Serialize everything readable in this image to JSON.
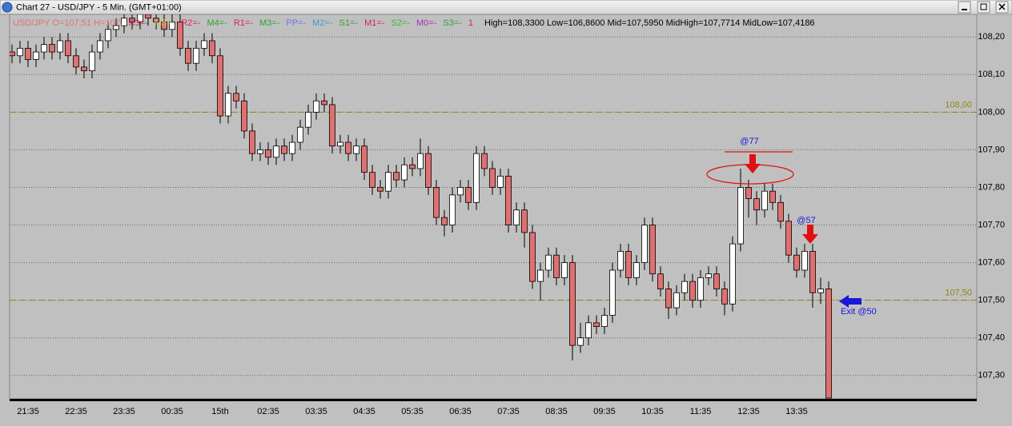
{
  "chart_data": {
    "type": "candlestick",
    "title": "Chart 27 - USD/JPY - 5 Min. (GMT+01:00)",
    "header": "USD/JPY O=107,51 H=107,",
    "legend": [
      {
        "label": "R3=-",
        "color": "#d8205a"
      },
      {
        "label": "M5=-",
        "color": "#c8c850"
      },
      {
        "label": "R2=-",
        "color": "#d8205a"
      },
      {
        "label": "M4=-",
        "color": "#30a030"
      },
      {
        "label": "R1=-",
        "color": "#d8205a"
      },
      {
        "label": "M3=-",
        "color": "#30a030"
      },
      {
        "label": "PP=-",
        "color": "#7070f0"
      },
      {
        "label": "M2=-",
        "color": "#3a9ad0"
      },
      {
        "label": "S1=-",
        "color": "#30a030"
      },
      {
        "label": "M1=-",
        "color": "#d8205a"
      },
      {
        "label": "S2=-",
        "color": "#30c030"
      },
      {
        "label": "M0=-",
        "color": "#a030c0"
      },
      {
        "label": "S3=-",
        "color": "#30a030"
      },
      {
        "label": "1",
        "color": "#d8205a"
      }
    ],
    "stats": "High=108,3300 Low=106,8600 Mid=107,5950 MidHigh=107,7714 MidLow=107,4186",
    "categories": [
      null,
      null,
      "21:35",
      null,
      null,
      null,
      null,
      null,
      "22:35",
      null,
      null,
      null,
      null,
      null,
      "23:35",
      null,
      null,
      null,
      null,
      null,
      "00:35",
      null,
      null,
      null,
      null,
      null,
      "15th",
      null,
      null,
      null,
      null,
      null,
      "02:35",
      null,
      null,
      null,
      null,
      null,
      "03:35",
      null,
      null,
      null,
      null,
      null,
      "04:35",
      null,
      null,
      null,
      null,
      null,
      "05:35",
      null,
      null,
      null,
      null,
      null,
      "06:35",
      null,
      null,
      null,
      null,
      null,
      "07:35",
      null,
      null,
      null,
      null,
      null,
      "08:35",
      null,
      null,
      null,
      null,
      null,
      "09:35",
      null,
      null,
      null,
      null,
      null,
      "10:35",
      null,
      null,
      null,
      null,
      null,
      "11:35",
      null,
      null,
      null,
      null,
      null,
      "12:35",
      null,
      null,
      null,
      null,
      null,
      "13:35",
      null,
      null,
      null,
      null
    ],
    "open": [
      108.16,
      108.15,
      108.17,
      108.14,
      108.16,
      108.18,
      108.16,
      108.19,
      108.15,
      108.12,
      108.11,
      108.16,
      108.19,
      108.22,
      108.23,
      108.25,
      108.24,
      108.26,
      108.25,
      108.24,
      108.22,
      108.24,
      108.17,
      108.13,
      108.17,
      108.19,
      108.15,
      107.99,
      108.05,
      108.03,
      107.95,
      107.89,
      107.9,
      107.88,
      107.91,
      107.89,
      107.92,
      107.96,
      108.0,
      108.03,
      108.02,
      107.91,
      107.92,
      107.89,
      107.91,
      107.84,
      107.8,
      107.79,
      107.84,
      107.82,
      107.86,
      107.85,
      107.89,
      107.8,
      107.72,
      107.7,
      107.78,
      107.8,
      107.76,
      107.89,
      107.85,
      107.8,
      107.83,
      107.7,
      107.74,
      107.68,
      107.55,
      107.58,
      107.62,
      107.56,
      107.6,
      107.38,
      107.4,
      107.44,
      107.43,
      107.46,
      107.58,
      107.63,
      107.56,
      107.6,
      107.7,
      107.57,
      107.53,
      107.48,
      107.52,
      107.55,
      107.5,
      107.56,
      107.57,
      107.53,
      107.49,
      107.65,
      107.8,
      107.77,
      107.74,
      107.79,
      107.76,
      107.71,
      107.62,
      107.58,
      107.63,
      107.52,
      107.53
    ],
    "high": [
      108.18,
      108.19,
      108.19,
      108.18,
      108.2,
      108.2,
      108.21,
      108.21,
      108.17,
      108.14,
      108.18,
      108.21,
      108.24,
      108.25,
      108.27,
      108.27,
      108.28,
      108.28,
      108.27,
      108.26,
      108.26,
      108.26,
      108.19,
      108.19,
      108.21,
      108.21,
      108.17,
      108.07,
      108.07,
      108.05,
      107.97,
      107.92,
      107.92,
      107.93,
      107.93,
      107.94,
      107.98,
      108.02,
      108.05,
      108.05,
      108.04,
      107.94,
      107.94,
      107.93,
      107.93,
      107.86,
      107.82,
      107.86,
      107.86,
      107.88,
      107.88,
      107.93,
      107.91,
      107.82,
      107.74,
      107.8,
      107.82,
      107.82,
      107.91,
      107.91,
      107.87,
      107.85,
      107.85,
      107.76,
      107.76,
      107.7,
      107.6,
      107.64,
      107.64,
      107.62,
      107.62,
      107.44,
      107.46,
      107.46,
      107.48,
      107.6,
      107.65,
      107.65,
      107.62,
      107.72,
      107.72,
      107.59,
      107.55,
      107.54,
      107.57,
      107.57,
      107.58,
      107.59,
      107.59,
      107.55,
      107.67,
      107.85,
      107.82,
      107.79,
      107.81,
      107.81,
      107.78,
      107.73,
      107.64,
      107.65,
      107.65,
      107.56,
      107.55
    ],
    "low": [
      108.13,
      108.13,
      108.12,
      108.12,
      108.14,
      108.14,
      108.14,
      108.13,
      108.1,
      108.09,
      108.09,
      108.14,
      108.17,
      108.2,
      108.21,
      108.22,
      108.22,
      108.23,
      108.22,
      108.2,
      108.2,
      108.15,
      108.11,
      108.11,
      108.15,
      108.13,
      107.97,
      107.97,
      108.01,
      107.93,
      107.87,
      107.87,
      107.86,
      107.86,
      107.87,
      107.87,
      107.9,
      107.94,
      107.98,
      108.0,
      107.89,
      107.89,
      107.87,
      107.87,
      107.82,
      107.78,
      107.77,
      107.77,
      107.8,
      107.8,
      107.83,
      107.83,
      107.78,
      107.7,
      107.67,
      107.68,
      107.76,
      107.74,
      107.74,
      107.83,
      107.78,
      107.78,
      107.68,
      107.68,
      107.64,
      107.53,
      107.5,
      107.56,
      107.54,
      107.54,
      107.34,
      107.36,
      107.38,
      107.41,
      107.41,
      107.44,
      107.56,
      107.54,
      107.54,
      107.58,
      107.55,
      107.51,
      107.45,
      107.46,
      107.5,
      107.48,
      107.48,
      107.54,
      107.51,
      107.46,
      107.47,
      107.63,
      107.72,
      107.7,
      107.72,
      107.74,
      107.69,
      107.6,
      107.56,
      107.56,
      107.48,
      107.49,
      107.24
    ],
    "close": [
      108.15,
      108.17,
      108.14,
      108.16,
      108.18,
      108.16,
      108.19,
      108.15,
      108.12,
      108.11,
      108.16,
      108.19,
      108.22,
      108.23,
      108.25,
      108.24,
      108.26,
      108.25,
      108.24,
      108.22,
      108.24,
      108.17,
      108.13,
      108.17,
      108.19,
      108.15,
      107.99,
      108.05,
      108.03,
      107.95,
      107.89,
      107.9,
      107.88,
      107.91,
      107.89,
      107.92,
      107.96,
      108.0,
      108.03,
      108.02,
      107.91,
      107.92,
      107.89,
      107.91,
      107.84,
      107.8,
      107.79,
      107.84,
      107.82,
      107.86,
      107.85,
      107.89,
      107.8,
      107.72,
      107.7,
      107.78,
      107.8,
      107.76,
      107.89,
      107.85,
      107.8,
      107.83,
      107.7,
      107.74,
      107.68,
      107.55,
      107.58,
      107.62,
      107.56,
      107.6,
      107.38,
      107.4,
      107.44,
      107.43,
      107.46,
      107.58,
      107.63,
      107.56,
      107.6,
      107.7,
      107.57,
      107.53,
      107.48,
      107.52,
      107.55,
      107.5,
      107.56,
      107.57,
      107.53,
      107.49,
      107.65,
      107.8,
      107.77,
      107.74,
      107.79,
      107.76,
      107.71,
      107.62,
      107.58,
      107.63,
      107.52,
      107.53,
      107.24
    ],
    "up_color": "#ffffff",
    "down_color": "#e07070",
    "ylim": [
      107.24,
      108.26
    ],
    "yticks": [
      {
        "value": 107.3,
        "label": "107,30"
      },
      {
        "value": 107.4,
        "label": "107,40"
      },
      {
        "value": 107.5,
        "label": "107,50"
      },
      {
        "value": 107.6,
        "label": "107,60"
      },
      {
        "value": 107.7,
        "label": "107,70"
      },
      {
        "value": 107.8,
        "label": "107,80"
      },
      {
        "value": 107.9,
        "label": "107,90"
      },
      {
        "value": 108.0,
        "label": "108,00"
      },
      {
        "value": 108.1,
        "label": "108,10"
      },
      {
        "value": 108.2,
        "label": "108,20"
      }
    ],
    "grid": true,
    "levels": [
      {
        "value": 108.0,
        "label": "108,00"
      },
      {
        "value": 107.5,
        "label": "107,50"
      }
    ],
    "level_color": "#8a8a10",
    "annotations": [
      "@77",
      "@57",
      "Exit @50"
    ],
    "annotation_color": "#1818d8"
  }
}
